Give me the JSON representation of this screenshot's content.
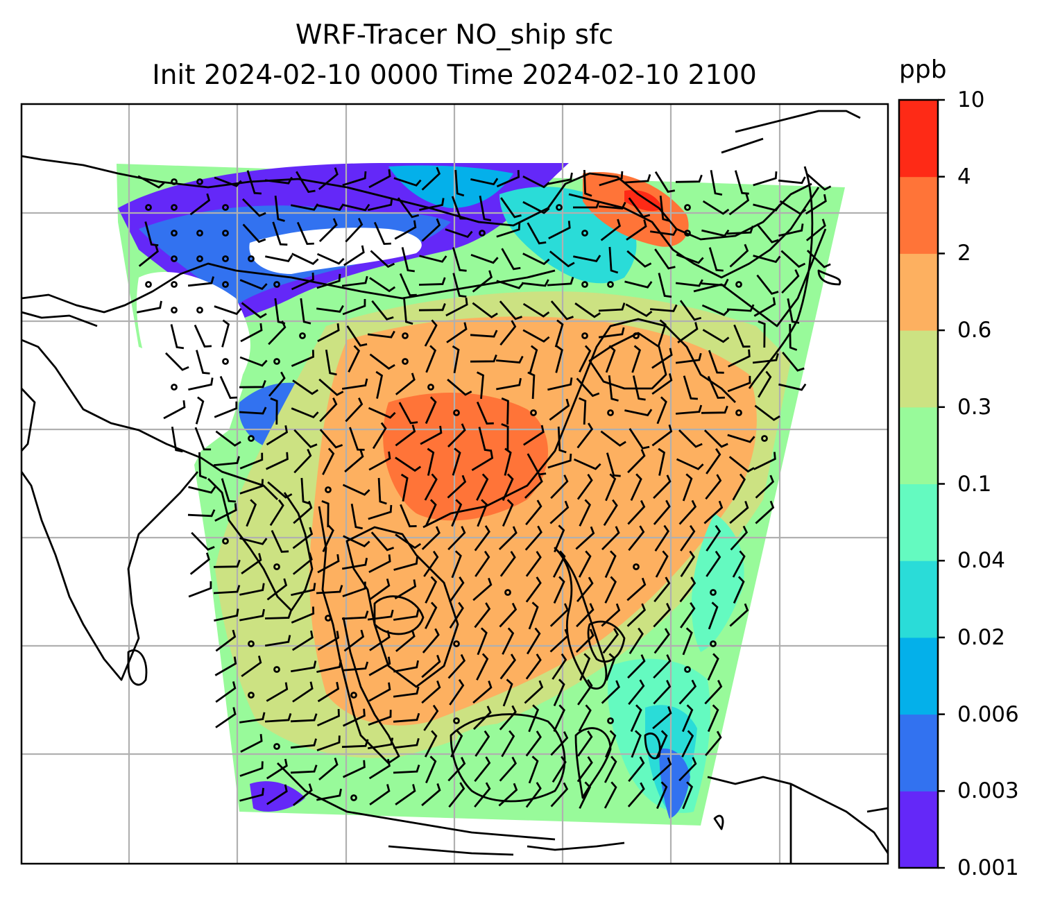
{
  "title": {
    "line1": "WRF-Tracer NO_ship sfc",
    "line2": "Init 2024-02-10 0000 Time 2024-02-10 2100"
  },
  "colorbar": {
    "unit": "ppb",
    "labels": [
      "10",
      "4",
      "2",
      "0.6",
      "0.3",
      "0.1",
      "0.04",
      "0.02",
      "0.006",
      "0.003",
      "0.001"
    ],
    "colors_bottom_to_top": [
      "#6428f8",
      "#3272f0",
      "#04b0ea",
      "#2adcd8",
      "#64fac0",
      "#98fa9a",
      "#cce282",
      "#fdb060",
      "#ff7438",
      "#fe2a16"
    ]
  },
  "map": {
    "projection": "map with lat/lon gridlines",
    "gridlines": true,
    "coastlines": true,
    "wind_barbs": true,
    "field": "NO_ship surface concentration"
  }
}
